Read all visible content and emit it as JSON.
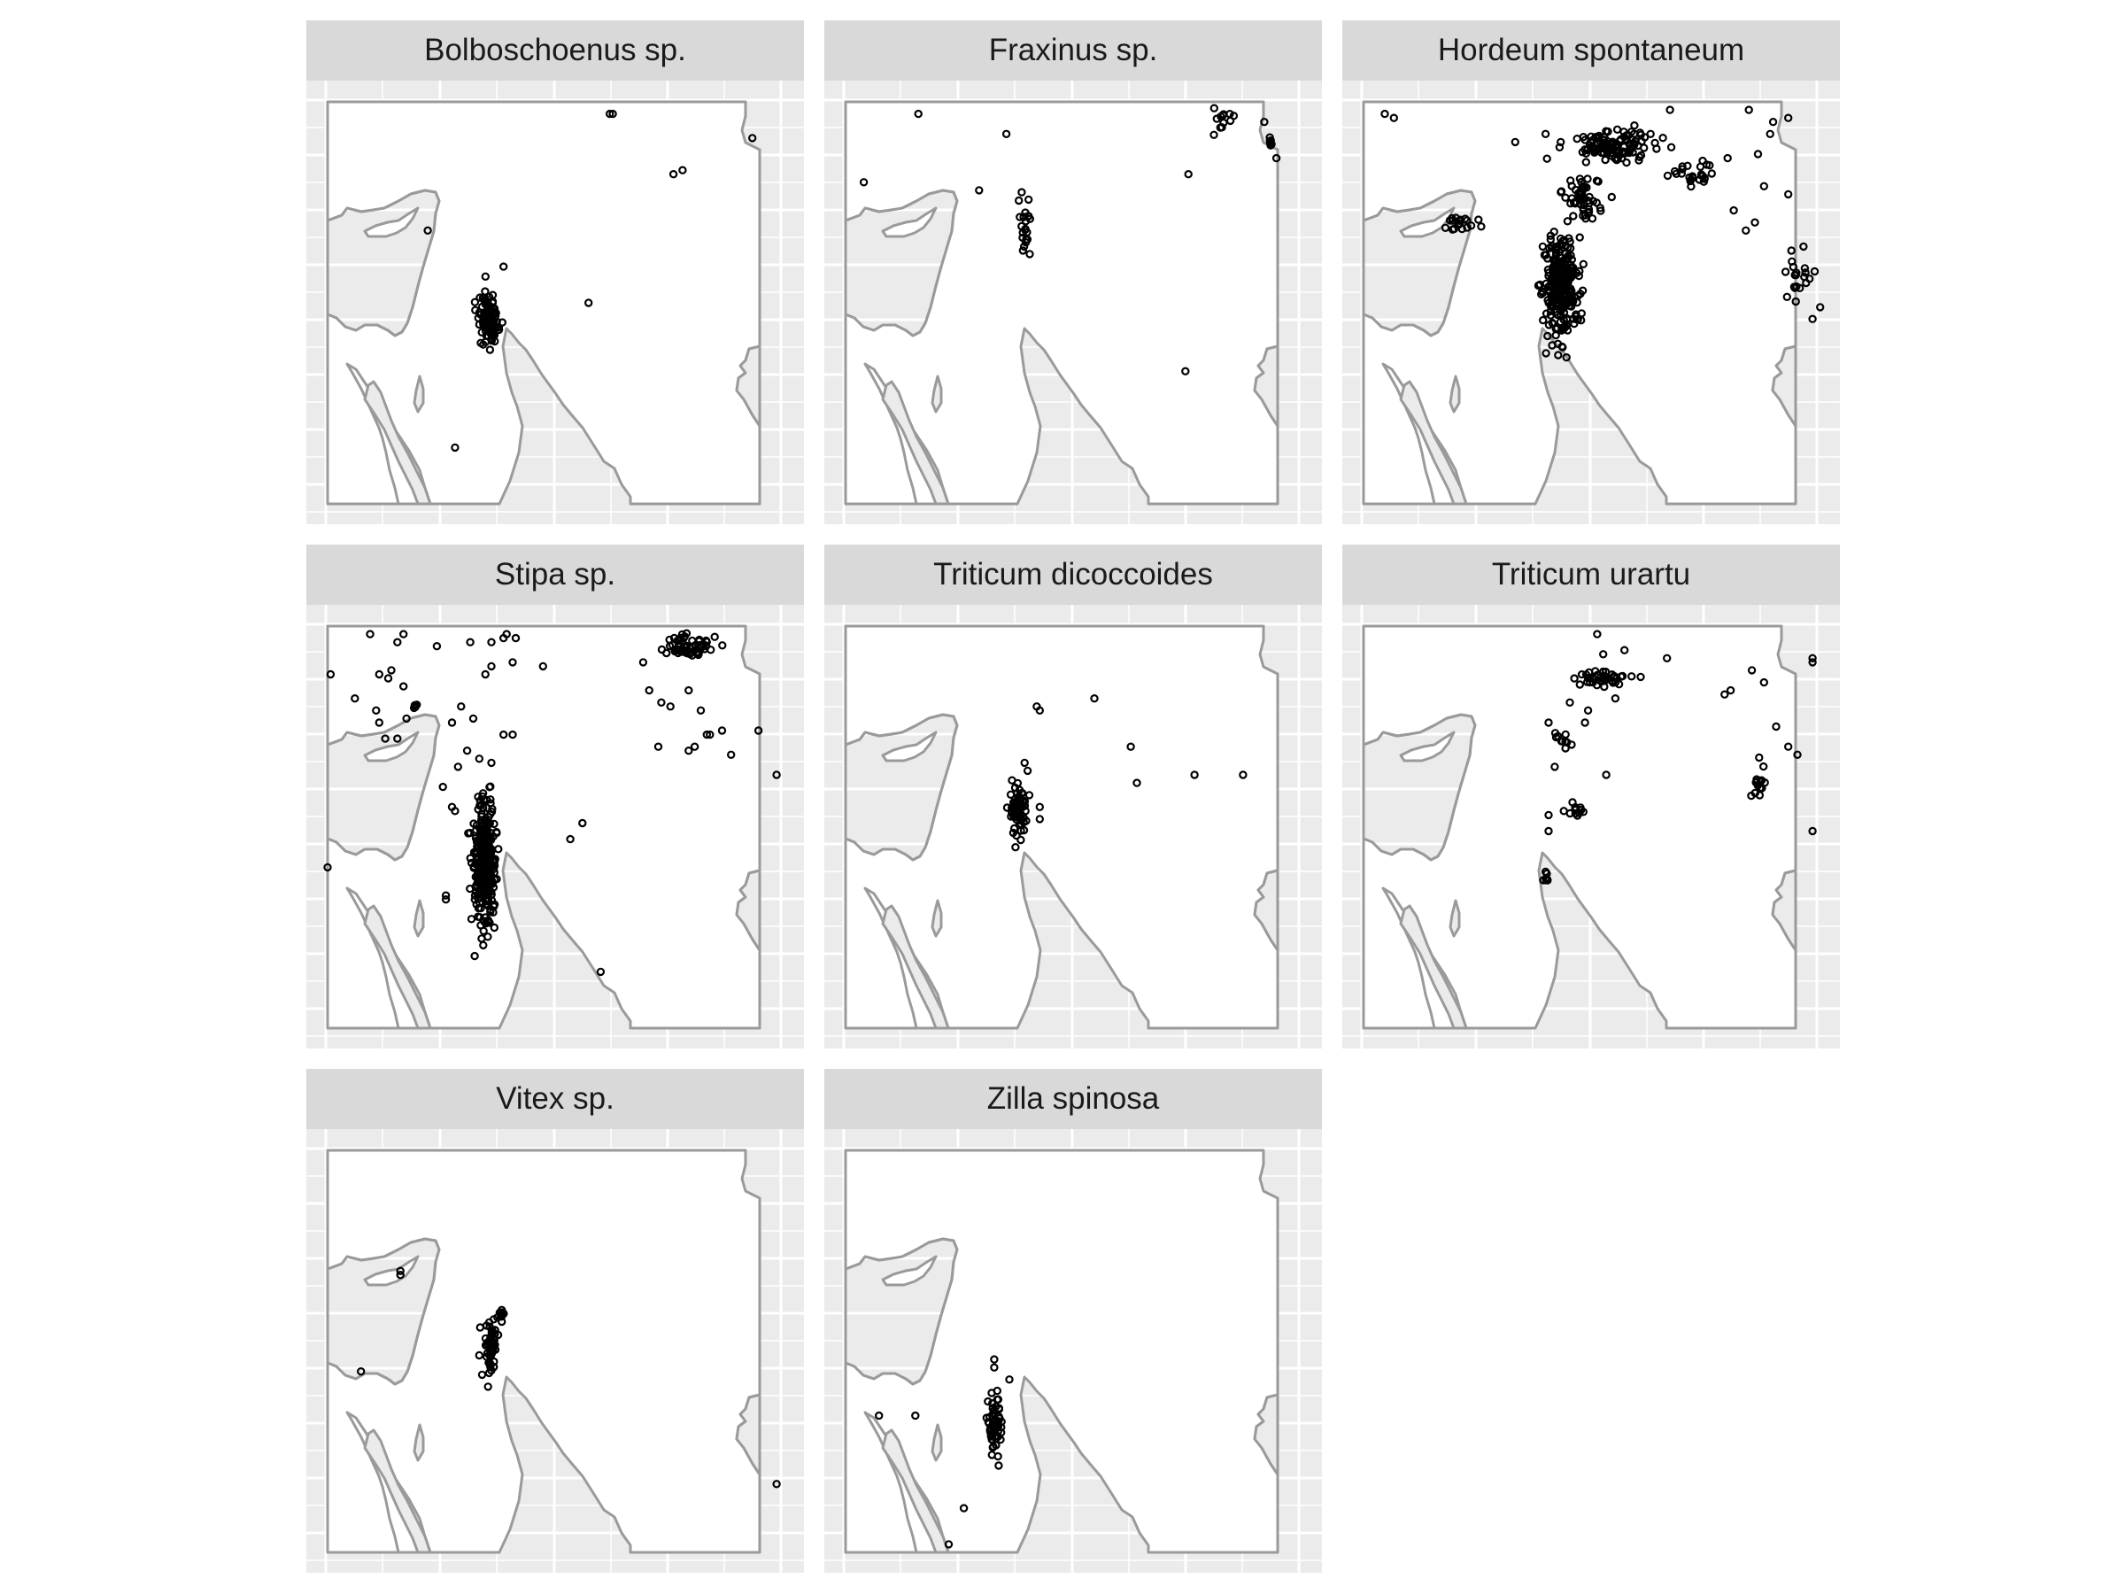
{
  "chart_data": {
    "type": "scatter",
    "layout": "facet-grid",
    "ncol": 3,
    "nrow": 3,
    "colors": {
      "panel_background": "#ebebeb",
      "grid": "#ffffff",
      "strip_background": "#d9d9d9",
      "land_fill": "#ffffff",
      "coastline": "#9a9a9a",
      "point_stroke": "#000000"
    },
    "point_shape": "open-circle",
    "grid": true,
    "facets": [
      {
        "label": "Bolboschoenus sp.",
        "clusters": [
          {
            "center": [
              35.3,
              32.6
            ],
            "spread": [
              0.35,
              0.7
            ],
            "n": 80
          }
        ],
        "points": [
          [
            39.3,
            37.7
          ],
          [
            39.4,
            37.7
          ],
          [
            44.0,
            37.1
          ],
          [
            41.4,
            36.2
          ],
          [
            41.7,
            36.3
          ],
          [
            38.6,
            33.0
          ],
          [
            35.8,
            33.9
          ],
          [
            33.3,
            34.8
          ],
          [
            34.2,
            29.4
          ],
          [
            35.6,
            32.4
          ],
          [
            35.5,
            32.2
          ]
        ]
      },
      {
        "label": "Fraxinus sp.",
        "clusters": [
          {
            "center": [
              35.9,
              34.8
            ],
            "spread": [
              0.25,
              0.9
            ],
            "n": 22
          },
          {
            "center": [
              42.4,
              37.5
            ],
            "spread": [
              0.4,
              0.3
            ],
            "n": 12
          },
          {
            "center": [
              44.0,
              37.0
            ],
            "spread": [
              0.08,
              0.1
            ],
            "n": 8
          }
        ],
        "points": [
          [
            32.4,
            37.7
          ],
          [
            35.3,
            37.2
          ],
          [
            30.6,
            36.0
          ],
          [
            34.4,
            35.8
          ],
          [
            41.3,
            36.2
          ],
          [
            44.2,
            36.6
          ],
          [
            41.2,
            31.3
          ],
          [
            43.8,
            37.5
          ]
        ]
      },
      {
        "label": "Hordeum spontaneum",
        "clusters": [
          {
            "center": [
              36.5,
              33.4
            ],
            "spread": [
              0.6,
              1.3
            ],
            "n": 250
          },
          {
            "center": [
              38.3,
              36.9
            ],
            "spread": [
              1.5,
              0.4
            ],
            "n": 110
          },
          {
            "center": [
              37.2,
              35.6
            ],
            "spread": [
              0.7,
              0.6
            ],
            "n": 55
          },
          {
            "center": [
              40.8,
              36.2
            ],
            "spread": [
              0.8,
              0.35
            ],
            "n": 25
          },
          {
            "center": [
              33.2,
              34.9
            ],
            "spread": [
              0.6,
              0.2
            ],
            "n": 18
          },
          {
            "center": [
              44.4,
              33.6
            ],
            "spread": [
              0.8,
              0.6
            ],
            "n": 18
          }
        ],
        "points": [
          [
            30.7,
            37.7
          ],
          [
            31.0,
            37.6
          ],
          [
            35.0,
            37.0
          ],
          [
            36.0,
            37.2
          ],
          [
            36.5,
            37.0
          ],
          [
            40.1,
            37.8
          ],
          [
            42.7,
            37.8
          ],
          [
            44.0,
            37.6
          ],
          [
            43.5,
            37.5
          ],
          [
            43.4,
            37.2
          ],
          [
            43.0,
            36.7
          ],
          [
            42.0,
            36.6
          ],
          [
            43.2,
            35.9
          ],
          [
            44.0,
            35.7
          ],
          [
            42.2,
            35.3
          ],
          [
            42.9,
            35.0
          ],
          [
            44.1,
            34.3
          ],
          [
            44.7,
            33.6
          ],
          [
            44.8,
            32.6
          ],
          [
            44.5,
            34.4
          ],
          [
            42.6,
            34.8
          ]
        ]
      },
      {
        "label": "Stipa sp.",
        "clusters": [
          {
            "center": [
              35.2,
              32.2
            ],
            "spread": [
              0.35,
              1.5
            ],
            "n": 300
          },
          {
            "center": [
              41.9,
              37.5
            ],
            "spread": [
              0.8,
              0.25
            ],
            "n": 60
          },
          {
            "center": [
              32.9,
              36.0
            ],
            "spread": [
              0.1,
              0.1
            ],
            "n": 6
          }
        ],
        "points": [
          [
            31.4,
            37.8
          ],
          [
            32.5,
            37.8
          ],
          [
            32.3,
            37.6
          ],
          [
            33.6,
            37.5
          ],
          [
            34.7,
            37.6
          ],
          [
            35.4,
            37.6
          ],
          [
            35.8,
            37.7
          ],
          [
            35.9,
            37.8
          ],
          [
            36.2,
            37.7
          ],
          [
            30.1,
            36.8
          ],
          [
            30.9,
            36.2
          ],
          [
            31.7,
            36.8
          ],
          [
            32.0,
            36.7
          ],
          [
            32.1,
            36.9
          ],
          [
            32.5,
            36.5
          ],
          [
            31.6,
            35.9
          ],
          [
            31.7,
            35.6
          ],
          [
            31.9,
            35.2
          ],
          [
            32.3,
            35.2
          ],
          [
            32.6,
            35.7
          ],
          [
            34.1,
            35.6
          ],
          [
            34.4,
            36.0
          ],
          [
            35.2,
            36.8
          ],
          [
            35.4,
            37.0
          ],
          [
            36.1,
            37.1
          ],
          [
            37.1,
            37.0
          ],
          [
            34.8,
            35.7
          ],
          [
            35.8,
            35.3
          ],
          [
            36.1,
            35.3
          ],
          [
            34.6,
            34.9
          ],
          [
            35.0,
            34.7
          ],
          [
            35.4,
            34.6
          ],
          [
            34.3,
            34.5
          ],
          [
            40.4,
            37.1
          ],
          [
            40.6,
            36.4
          ],
          [
            41.0,
            36.1
          ],
          [
            41.3,
            36.0
          ],
          [
            41.9,
            36.4
          ],
          [
            42.3,
            35.9
          ],
          [
            42.6,
            35.3
          ],
          [
            42.5,
            35.3
          ],
          [
            42.1,
            35.0
          ],
          [
            41.9,
            34.9
          ],
          [
            43.3,
            34.8
          ],
          [
            44.2,
            35.4
          ],
          [
            43.0,
            35.4
          ],
          [
            40.9,
            35.0
          ],
          [
            44.8,
            34.3
          ],
          [
            30.0,
            32.0
          ],
          [
            39.0,
            29.4
          ],
          [
            33.8,
            34.0
          ],
          [
            34.1,
            33.5
          ],
          [
            34.2,
            33.4
          ],
          [
            38.4,
            33.1
          ],
          [
            38.0,
            32.7
          ],
          [
            33.9,
            31.2
          ],
          [
            33.9,
            31.3
          ]
        ]
      },
      {
        "label": "Triticum dicoccoides",
        "clusters": [
          {
            "center": [
              35.7,
              33.4
            ],
            "spread": [
              0.3,
              0.5
            ],
            "n": 70
          }
        ],
        "points": [
          [
            36.3,
            36.0
          ],
          [
            36.4,
            35.9
          ],
          [
            38.2,
            36.2
          ],
          [
            39.4,
            35.0
          ],
          [
            39.6,
            34.1
          ],
          [
            41.5,
            34.3
          ],
          [
            43.1,
            34.3
          ],
          [
            35.9,
            34.6
          ],
          [
            36.0,
            34.4
          ],
          [
            35.6,
            32.5
          ],
          [
            36.4,
            33.5
          ],
          [
            36.4,
            33.2
          ]
        ]
      },
      {
        "label": "Triticum urartu",
        "clusters": [
          {
            "center": [
              37.8,
              36.7
            ],
            "spread": [
              1.0,
              0.2
            ],
            "n": 40
          },
          {
            "center": [
              36.6,
              35.2
            ],
            "spread": [
              0.3,
              0.2
            ],
            "n": 10
          },
          {
            "center": [
              37.0,
              33.4
            ],
            "spread": [
              0.2,
              0.15
            ],
            "n": 12
          },
          {
            "center": [
              36.0,
              31.7
            ],
            "spread": [
              0.12,
              0.15
            ],
            "n": 8
          },
          {
            "center": [
              43.0,
              34.1
            ],
            "spread": [
              0.25,
              0.5
            ],
            "n": 14
          }
        ],
        "points": [
          [
            37.7,
            37.8
          ],
          [
            37.9,
            37.3
          ],
          [
            38.6,
            37.4
          ],
          [
            38.3,
            36.2
          ],
          [
            37.4,
            35.9
          ],
          [
            37.3,
            35.6
          ],
          [
            36.8,
            36.1
          ],
          [
            36.1,
            35.6
          ],
          [
            36.3,
            34.5
          ],
          [
            36.6,
            33.4
          ],
          [
            36.1,
            33.3
          ],
          [
            36.1,
            32.9
          ],
          [
            38.0,
            34.3
          ],
          [
            40.0,
            37.2
          ],
          [
            41.9,
            36.3
          ],
          [
            42.1,
            36.4
          ],
          [
            42.8,
            36.9
          ],
          [
            43.2,
            36.6
          ],
          [
            43.6,
            35.5
          ],
          [
            44.0,
            35.0
          ],
          [
            44.3,
            34.8
          ],
          [
            44.8,
            37.1
          ],
          [
            44.8,
            37.2
          ],
          [
            44.8,
            32.9
          ]
        ]
      },
      {
        "label": "Vitex sp.",
        "clusters": [
          {
            "center": [
              35.4,
              33.1
            ],
            "spread": [
              0.22,
              0.75
            ],
            "n": 55
          },
          {
            "center": [
              35.7,
              33.9
            ],
            "spread": [
              0.12,
              0.15
            ],
            "n": 12
          }
        ],
        "points": [
          [
            32.4,
            34.9
          ],
          [
            32.4,
            35.0
          ],
          [
            31.1,
            32.5
          ],
          [
            44.8,
            29.7
          ],
          [
            35.0,
            32.9
          ]
        ]
      },
      {
        "label": "Zilla spinosa",
        "clusters": [
          {
            "center": [
              34.9,
              31.1
            ],
            "spread": [
              0.25,
              0.7
            ],
            "n": 55
          }
        ],
        "points": [
          [
            34.9,
            32.8
          ],
          [
            34.9,
            32.6
          ],
          [
            33.9,
            29.1
          ],
          [
            33.4,
            28.2
          ],
          [
            32.3,
            31.4
          ],
          [
            31.1,
            31.4
          ],
          [
            35.4,
            32.3
          ],
          [
            35.0,
            31.8
          ]
        ]
      }
    ]
  }
}
